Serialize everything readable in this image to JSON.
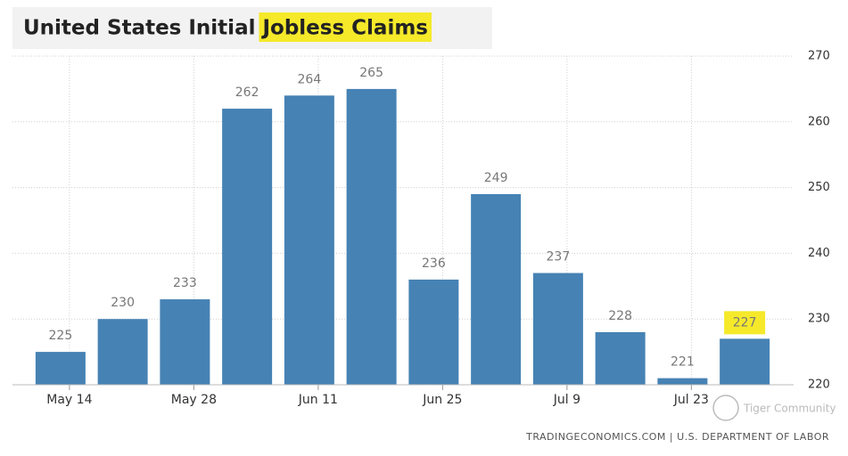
{
  "chart_data": {
    "type": "bar",
    "title": "United States Initial",
    "title_highlight": "Jobless Claims",
    "categories": [
      "May 14",
      null,
      "May 28",
      null,
      "Jun 11",
      null,
      "Jun 25",
      null,
      "Jul 9",
      null,
      "Jul 23",
      null
    ],
    "values": [
      225,
      230,
      233,
      262,
      264,
      265,
      236,
      249,
      237,
      228,
      221,
      227
    ],
    "color": "#4682b4",
    "highlight_color": "#f5e92a",
    "highlighted_value": 11,
    "ylim": [
      220,
      270
    ],
    "yticks": [
      220,
      230,
      240,
      250,
      260,
      270
    ],
    "grid": true,
    "source": "TRADINGECONOMICS.COM | U.S. DEPARTMENT OF LABOR",
    "watermark": "Tiger Community"
  }
}
